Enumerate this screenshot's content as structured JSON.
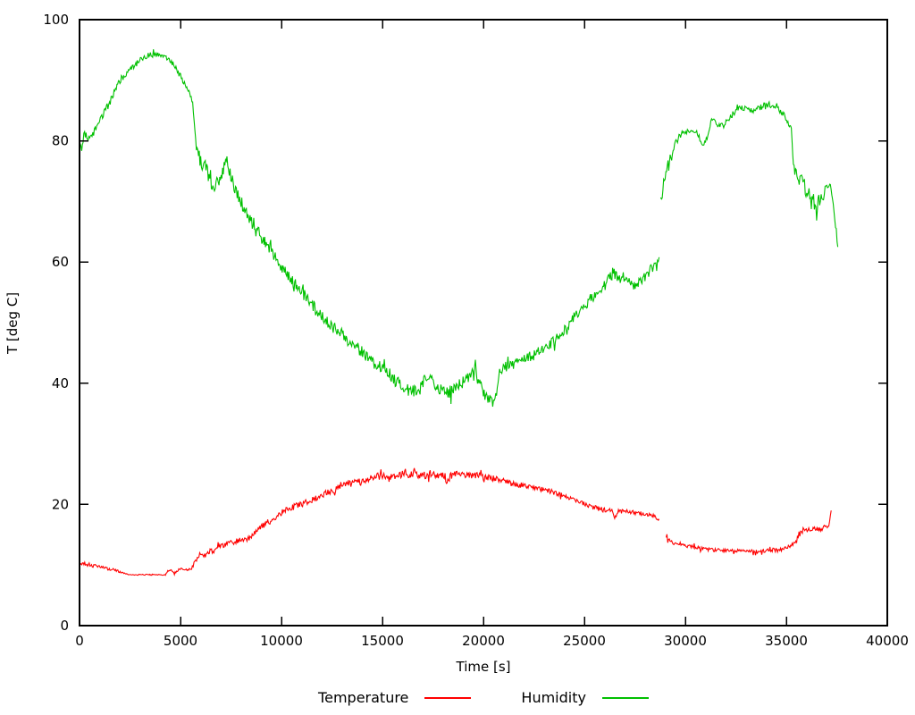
{
  "chart_data": {
    "type": "line",
    "title": "",
    "xlabel": "Time [s]",
    "ylabel": "T [deg C]",
    "xlim": [
      0,
      40000
    ],
    "ylim": [
      0,
      100
    ],
    "x_ticks": [
      0,
      5000,
      10000,
      15000,
      20000,
      25000,
      30000,
      35000,
      40000
    ],
    "y_ticks": [
      0,
      20,
      40,
      60,
      80,
      100
    ],
    "grid": false,
    "legend_position": "bottom-center",
    "background": "#ffffff",
    "axis_color": "#000000",
    "series": [
      {
        "name": "Temperature",
        "color": "#ff0000",
        "segments": [
          [
            [
              0,
              10.4,
              0.35
            ],
            [
              400,
              10.1,
              0.3
            ],
            [
              900,
              9.7,
              0.3
            ],
            [
              1400,
              9.4,
              0.25
            ],
            [
              1900,
              9.0,
              0.2
            ],
            [
              2300,
              8.6,
              0.15
            ],
            [
              2600,
              8.4,
              0.1
            ],
            [
              4250,
              8.4,
              0.1
            ],
            [
              4450,
              9.3,
              0.25
            ],
            [
              4700,
              8.6,
              0.2
            ],
            [
              4950,
              9.3,
              0.2
            ],
            [
              5550,
              9.3,
              0.25
            ],
            [
              5750,
              10.8,
              0.4
            ],
            [
              5950,
              11.8,
              0.4
            ],
            [
              6150,
              11.3,
              0.4
            ],
            [
              6350,
              12.2,
              0.4
            ],
            [
              6650,
              12.4,
              0.4
            ],
            [
              6900,
              13.2,
              0.4
            ],
            [
              7200,
              13.3,
              0.4
            ],
            [
              7600,
              13.8,
              0.45
            ],
            [
              8000,
              14.2,
              0.45
            ],
            [
              8400,
              14.4,
              0.5
            ],
            [
              8700,
              15.3,
              0.5
            ],
            [
              9100,
              16.6,
              0.5
            ],
            [
              9500,
              17.4,
              0.5
            ],
            [
              9900,
              18.4,
              0.5
            ],
            [
              10300,
              19.3,
              0.5
            ],
            [
              10700,
              19.7,
              0.5
            ],
            [
              11200,
              20.3,
              0.5
            ],
            [
              11700,
              21.0,
              0.5
            ],
            [
              12300,
              22.0,
              0.5
            ],
            [
              12900,
              22.8,
              0.55
            ],
            [
              13400,
              23.5,
              0.6
            ],
            [
              14000,
              23.8,
              0.6
            ],
            [
              14500,
              24.3,
              0.6
            ],
            [
              15000,
              24.9,
              0.65
            ],
            [
              15400,
              24.6,
              0.6
            ],
            [
              15800,
              25.0,
              0.7
            ],
            [
              16100,
              25.2,
              0.7
            ],
            [
              16500,
              24.9,
              0.65
            ],
            [
              17000,
              24.8,
              0.65
            ],
            [
              17400,
              25.0,
              0.65
            ],
            [
              17800,
              24.8,
              0.65
            ],
            [
              18100,
              24.7,
              0.6
            ],
            [
              18200,
              23.3,
              0.5
            ],
            [
              18350,
              24.8,
              0.6
            ],
            [
              18800,
              25.1,
              0.65
            ],
            [
              19300,
              25.0,
              0.65
            ],
            [
              19800,
              24.7,
              0.6
            ],
            [
              20300,
              24.4,
              0.55
            ],
            [
              20800,
              24.1,
              0.5
            ],
            [
              21300,
              23.5,
              0.5
            ],
            [
              21800,
              23.2,
              0.45
            ],
            [
              22400,
              22.8,
              0.4
            ],
            [
              23000,
              22.4,
              0.4
            ],
            [
              23600,
              21.9,
              0.4
            ],
            [
              24200,
              21.1,
              0.4
            ],
            [
              24700,
              20.4,
              0.4
            ],
            [
              25200,
              19.8,
              0.4
            ],
            [
              25700,
              19.3,
              0.4
            ],
            [
              26100,
              19.0,
              0.4
            ],
            [
              26400,
              18.9,
              0.35
            ],
            [
              26500,
              17.7,
              0.3
            ],
            [
              26650,
              18.9,
              0.35
            ],
            [
              27100,
              18.8,
              0.35
            ],
            [
              27600,
              18.6,
              0.35
            ],
            [
              28100,
              18.4,
              0.35
            ],
            [
              28450,
              18.1,
              0.35
            ],
            [
              28700,
              17.6,
              0.35
            ]
          ],
          [
            [
              29050,
              14.8,
              0.5
            ],
            [
              29250,
              14.1,
              0.4
            ],
            [
              29550,
              13.5,
              0.35
            ],
            [
              29900,
              13.2,
              0.3
            ],
            [
              30400,
              13.0,
              0.3
            ],
            [
              30900,
              12.7,
              0.3
            ],
            [
              31400,
              12.5,
              0.3
            ],
            [
              31900,
              12.4,
              0.3
            ],
            [
              32400,
              12.3,
              0.3
            ],
            [
              32900,
              12.4,
              0.3
            ],
            [
              33400,
              12.2,
              0.3
            ],
            [
              33900,
              12.3,
              0.3
            ],
            [
              34300,
              12.5,
              0.3
            ],
            [
              34600,
              12.4,
              0.3
            ],
            [
              34950,
              12.8,
              0.3
            ],
            [
              35250,
              13.1,
              0.35
            ],
            [
              35400,
              13.7,
              0.4
            ],
            [
              35550,
              14.9,
              0.5
            ],
            [
              35750,
              15.4,
              0.5
            ],
            [
              35950,
              16.1,
              0.5
            ],
            [
              36150,
              15.7,
              0.45
            ],
            [
              36400,
              16.0,
              0.4
            ],
            [
              36700,
              15.9,
              0.4
            ],
            [
              36950,
              16.1,
              0.4
            ],
            [
              37100,
              16.8,
              0.45
            ],
            [
              37220,
              19.0,
              0.4
            ]
          ]
        ]
      },
      {
        "name": "Humidity",
        "color": "#00c000",
        "segments": [
          [
            [
              0,
              78,
              1.4
            ],
            [
              250,
              81,
              0.6
            ],
            [
              500,
              80.3,
              0.5
            ],
            [
              700,
              81.3,
              0.5
            ],
            [
              1100,
              84,
              0.6
            ],
            [
              1600,
              87,
              0.6
            ],
            [
              2000,
              90,
              0.6
            ],
            [
              2500,
              91.8,
              0.5
            ],
            [
              2900,
              93,
              0.5
            ],
            [
              3400,
              94.2,
              0.45
            ],
            [
              4100,
              94.3,
              0.45
            ],
            [
              4550,
              93,
              0.5
            ],
            [
              5000,
              90.7,
              0.5
            ],
            [
              5350,
              88.3,
              0.5
            ],
            [
              5600,
              86.8,
              0.4
            ],
            [
              5750,
              79.5,
              1.2
            ],
            [
              6000,
              76.3,
              1.2
            ],
            [
              6300,
              75.5,
              1.3
            ],
            [
              6600,
              72,
              1.2
            ],
            [
              6800,
              73.5,
              1.1
            ],
            [
              7050,
              75,
              1.2
            ],
            [
              7300,
              76.5,
              1.0
            ],
            [
              7650,
              72.5,
              1.1
            ],
            [
              8000,
              70,
              1.1
            ],
            [
              8300,
              67.5,
              1.1
            ],
            [
              8700,
              66,
              1.1
            ],
            [
              9100,
              63.5,
              1.0
            ],
            [
              9500,
              62,
              1.0
            ],
            [
              10000,
              59,
              1.0
            ],
            [
              10400,
              57.5,
              1.0
            ],
            [
              10800,
              55.8,
              1.0
            ],
            [
              11300,
              54,
              1.0
            ],
            [
              11800,
              52,
              1.0
            ],
            [
              12300,
              50,
              1.0
            ],
            [
              12900,
              48.3,
              1.0
            ],
            [
              13400,
              46.8,
              1.0
            ],
            [
              13900,
              45.5,
              1.0
            ],
            [
              14400,
              44,
              1.05
            ],
            [
              14900,
              42.5,
              1.05
            ],
            [
              15400,
              41.3,
              1.05
            ],
            [
              15900,
              39.5,
              1.1
            ],
            [
              16400,
              38.5,
              1.1
            ],
            [
              16900,
              39.3,
              1.1
            ],
            [
              17300,
              41.5,
              1.0
            ],
            [
              17700,
              39.3,
              1.05
            ],
            [
              18200,
              38.5,
              1.1
            ],
            [
              18700,
              39.3,
              1.05
            ],
            [
              19100,
              40.5,
              1.0
            ],
            [
              19600,
              41.8,
              0.95
            ],
            [
              20000,
              38.5,
              1.0
            ],
            [
              20300,
              37.5,
              0.95
            ],
            [
              20500,
              36.9,
              0.9
            ],
            [
              20650,
              38.5,
              0.9
            ],
            [
              20800,
              41.5,
              0.9
            ],
            [
              21100,
              42.7,
              0.9
            ],
            [
              21600,
              43.2,
              0.9
            ],
            [
              22100,
              44,
              0.9
            ],
            [
              22600,
              44.8,
              0.9
            ],
            [
              23100,
              46,
              0.9
            ],
            [
              23600,
              47.2,
              0.9
            ],
            [
              24100,
              49,
              0.9
            ],
            [
              24600,
              51.5,
              0.9
            ],
            [
              25000,
              52.8,
              0.9
            ],
            [
              25400,
              54.3,
              0.9
            ],
            [
              25800,
              55.5,
              0.85
            ],
            [
              26100,
              56.5,
              0.85
            ],
            [
              26400,
              58.3,
              0.85
            ],
            [
              26700,
              57.3,
              0.85
            ],
            [
              27000,
              57.6,
              0.85
            ],
            [
              27400,
              56.2,
              0.85
            ],
            [
              27700,
              56.8,
              0.85
            ],
            [
              28000,
              57.4,
              0.85
            ],
            [
              28300,
              58.9,
              0.8
            ],
            [
              28500,
              59.6,
              0.8
            ],
            [
              28700,
              60.8,
              0.8
            ]
          ],
          [
            [
              28780,
              70.5,
              1.5
            ],
            [
              29000,
              74.5,
              0.9
            ],
            [
              29250,
              77.5,
              0.7
            ],
            [
              29500,
              79.5,
              0.6
            ],
            [
              29800,
              81.2,
              0.55
            ],
            [
              30100,
              81.7,
              0.5
            ],
            [
              30400,
              81.8,
              0.5
            ],
            [
              30600,
              81.2,
              0.45
            ],
            [
              30800,
              79.5,
              0.45
            ],
            [
              31000,
              79.8,
              0.45
            ],
            [
              31150,
              81.5,
              0.5
            ],
            [
              31300,
              83.3,
              0.5
            ],
            [
              31450,
              83,
              0.5
            ],
            [
              31600,
              82.6,
              0.45
            ],
            [
              31900,
              82.6,
              0.45
            ],
            [
              32200,
              83.8,
              0.5
            ],
            [
              32500,
              85,
              0.5
            ],
            [
              32800,
              85.5,
              0.5
            ],
            [
              33100,
              85.2,
              0.5
            ],
            [
              33400,
              84.8,
              0.5
            ],
            [
              33700,
              85.5,
              0.5
            ],
            [
              34000,
              86,
              0.5
            ],
            [
              34300,
              85.9,
              0.5
            ],
            [
              34600,
              85.3,
              0.5
            ],
            [
              34900,
              84.2,
              0.5
            ],
            [
              35150,
              82.5,
              0.5
            ],
            [
              35250,
              81.8,
              0.45
            ],
            [
              35350,
              76,
              1.2
            ],
            [
              35600,
              74,
              1.1
            ],
            [
              35900,
              72.5,
              1.2
            ],
            [
              36200,
              70.5,
              1.3
            ],
            [
              36500,
              69.5,
              1.3
            ],
            [
              36800,
              71,
              1.2
            ],
            [
              37000,
              72.5,
              1.1
            ],
            [
              37150,
              73.5,
              1.0
            ],
            [
              37250,
              70.5,
              1.0
            ],
            [
              37400,
              67,
              0.9
            ],
            [
              37550,
              62.5,
              0.8
            ]
          ]
        ]
      }
    ]
  }
}
